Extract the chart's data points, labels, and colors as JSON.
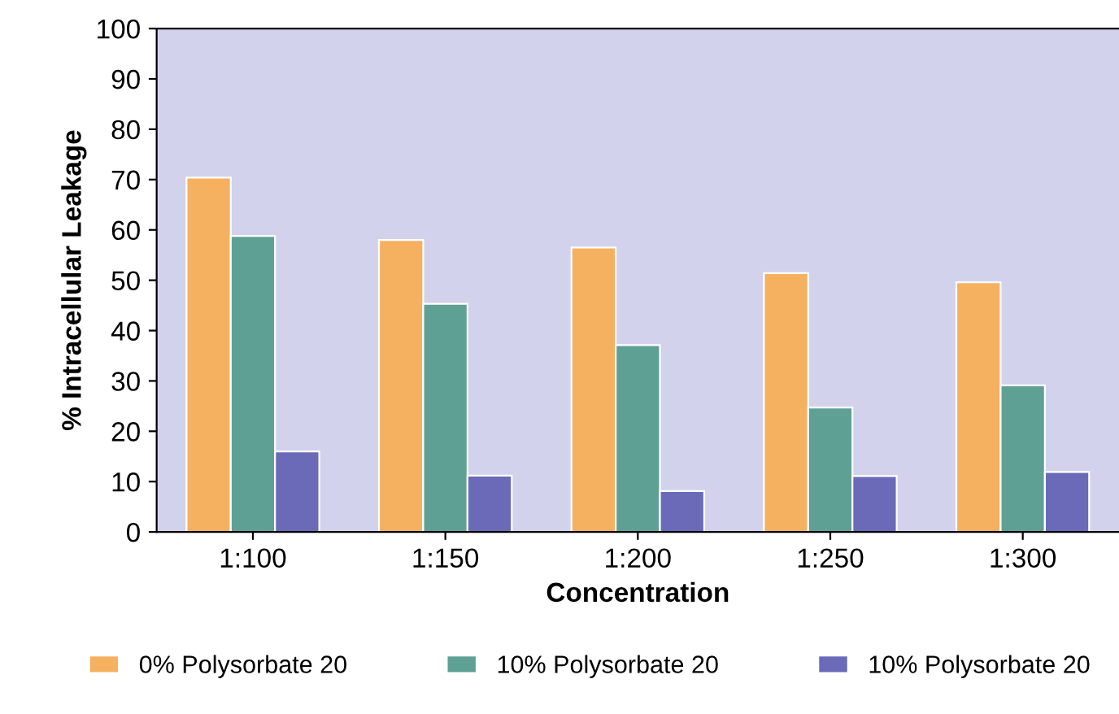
{
  "chart_data": {
    "type": "bar",
    "xlabel": "Concentration",
    "ylabel": "% Intracellular Leakage",
    "categories": [
      "1:100",
      "1:150",
      "1:200",
      "1:250",
      "1:300"
    ],
    "series": [
      {
        "name": "0% Polysorbate 20",
        "color": "#f5b060",
        "values": [
          70.4,
          58.0,
          56.5,
          51.4,
          49.6
        ]
      },
      {
        "name": "10% Polysorbate 20",
        "color": "#5fa095",
        "values": [
          58.8,
          45.3,
          37.1,
          24.7,
          29.1
        ]
      },
      {
        "name": "10% Polysorbate 20",
        "color": "#6a6ab8",
        "values": [
          16.0,
          11.2,
          8.1,
          11.1,
          11.9
        ]
      }
    ],
    "ylim": [
      0,
      100
    ],
    "yticks": [
      0,
      10,
      20,
      30,
      40,
      50,
      60,
      70,
      80,
      90,
      100
    ],
    "grid": false,
    "legend": "bottom"
  }
}
